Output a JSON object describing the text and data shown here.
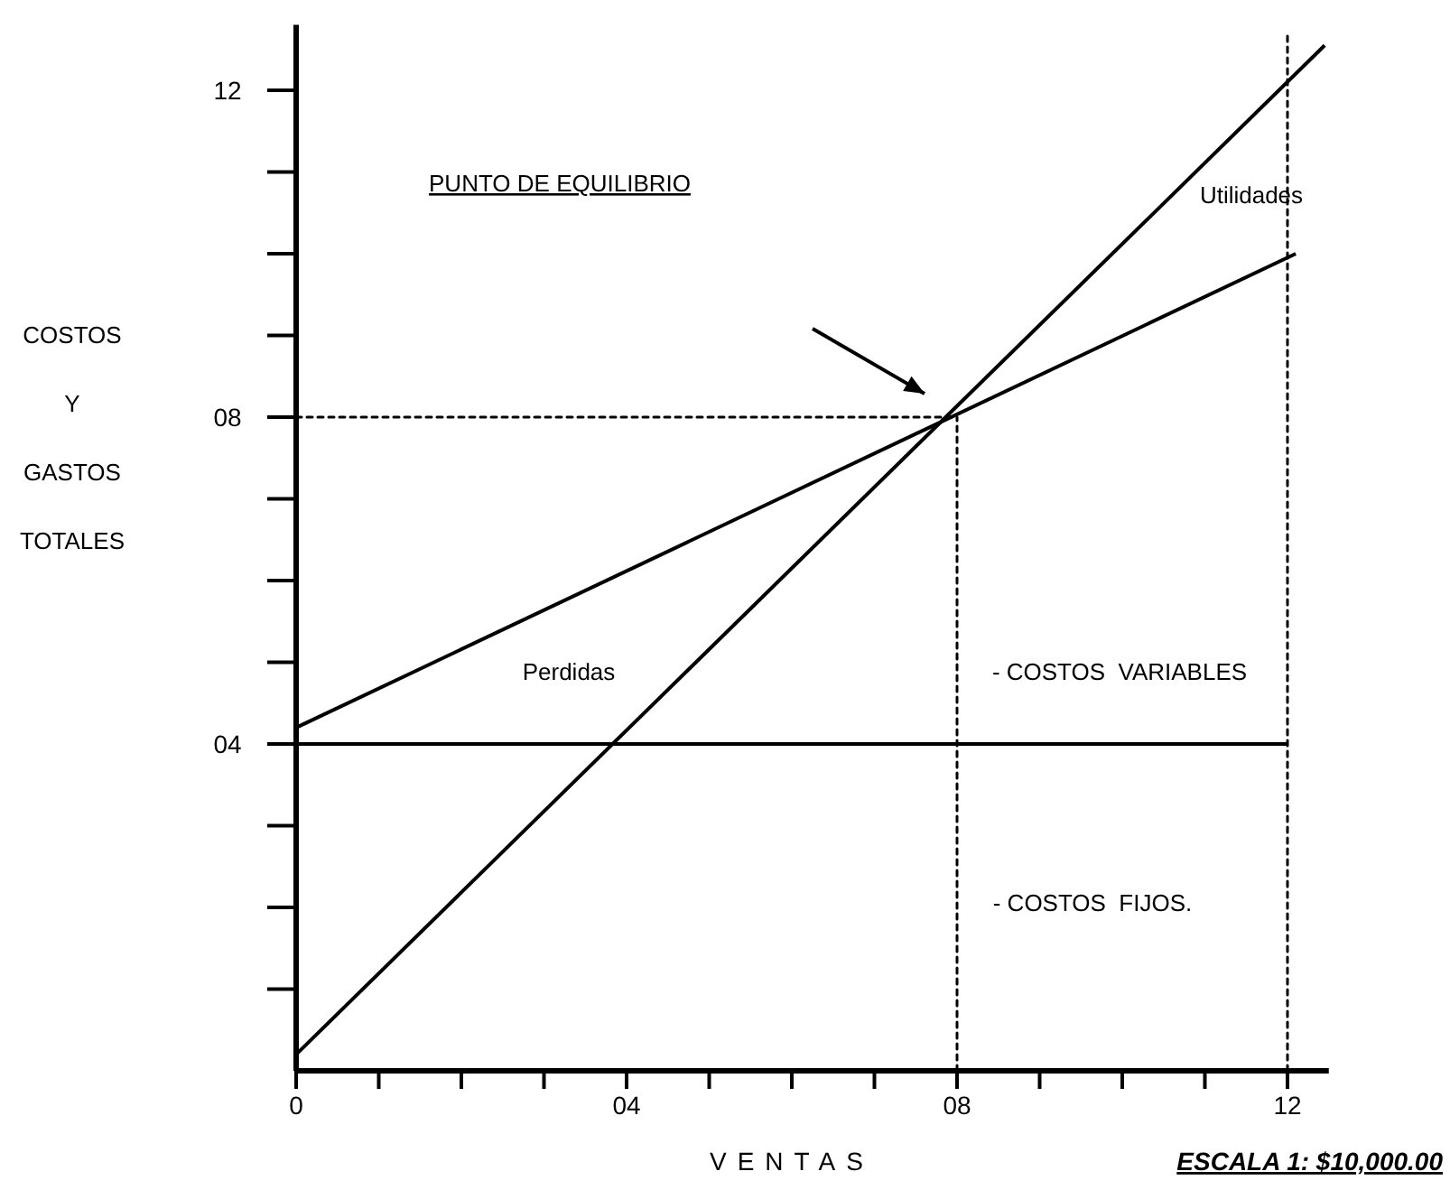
{
  "chart_data": {
    "type": "line",
    "xlabel": "VENTAS",
    "ylabel": "COSTOS Y GASTOS TOTALES",
    "xlim": [
      0,
      12.5
    ],
    "ylim": [
      0,
      12.8
    ],
    "xticks": [
      0,
      {
        "value": 1,
        "label": null
      },
      {
        "value": 2,
        "label": null
      },
      {
        "value": 3,
        "label": null
      },
      {
        "value": 4,
        "label": "04"
      },
      {
        "value": 5,
        "label": null
      },
      {
        "value": 6,
        "label": null
      },
      {
        "value": 7,
        "label": null
      },
      {
        "value": 8,
        "label": "08"
      },
      {
        "value": 9,
        "label": null
      },
      {
        "value": 10,
        "label": null
      },
      {
        "value": 11,
        "label": null
      },
      12
    ],
    "yticks": [
      {
        "value": 1,
        "label": null
      },
      {
        "value": 2,
        "label": null
      },
      {
        "value": 3,
        "label": null
      },
      {
        "value": 4,
        "label": "04"
      },
      {
        "value": 5,
        "label": null
      },
      {
        "value": 6,
        "label": null
      },
      {
        "value": 7,
        "label": null
      },
      {
        "value": 8,
        "label": "08"
      },
      {
        "value": 9,
        "label": null
      },
      {
        "value": 10,
        "label": null
      },
      {
        "value": 11,
        "label": null
      },
      12
    ],
    "grid": false,
    "marker": "none",
    "series": [
      {
        "color": "#000000",
        "x": [
          0,
          12.45
        ],
        "values": [
          0.2,
          12.55
        ],
        "line_style": "solid"
      },
      {
        "color": "#000000",
        "x": [
          0,
          12.1
        ],
        "values": [
          4.2,
          10.0
        ],
        "line_style": "solid"
      },
      {
        "color": "#000000",
        "x": [
          0,
          12
        ],
        "values": [
          4,
          4
        ],
        "line_style": "solid"
      },
      {
        "color": "#000000",
        "x": [
          0,
          8
        ],
        "values": [
          8,
          8
        ],
        "line_style": "dotted"
      },
      {
        "color": "#000000",
        "x": [
          8,
          8
        ],
        "values": [
          0,
          8
        ],
        "line_style": "dotted"
      },
      {
        "color": "#000000",
        "x": [
          12,
          12
        ],
        "values": [
          0,
          12.7
        ],
        "line_style": "dotted"
      }
    ],
    "annotations": [
      "PUNTO DE EQUILIBRIO",
      "Utilidades",
      "Perdidas",
      "- COSTOS  VARIABLES",
      "- COSTOS  FIJOS.",
      "ESCALA 1: $10,000.00"
    ]
  }
}
